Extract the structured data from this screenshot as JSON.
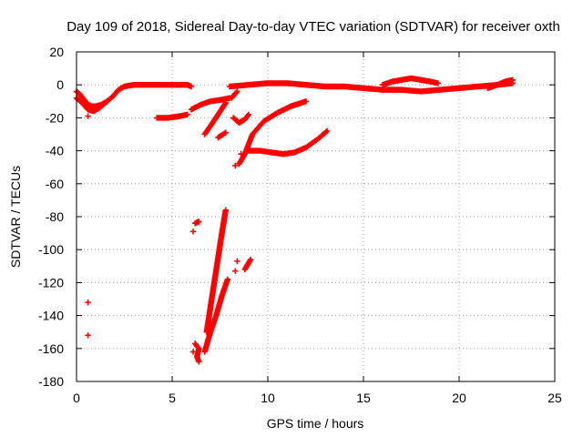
{
  "chart_data": {
    "type": "scatter",
    "title": "Day 109 of 2018, Sidereal Day-to-day VTEC variation (SDTVAR) for receiver oxth",
    "xlabel": "GPS time / hours",
    "ylabel": "SDTVAR / TECUs",
    "xlim": [
      0,
      25
    ],
    "ylim": [
      -180,
      20
    ],
    "xticks": [
      0,
      5,
      10,
      15,
      20,
      25
    ],
    "yticks": [
      -180,
      -160,
      -140,
      -120,
      -100,
      -80,
      -60,
      -40,
      -20,
      0,
      20
    ],
    "grid": true,
    "legend": "none",
    "marker": "plus",
    "color": "#ff0000",
    "tracks": [
      {
        "points": [
          [
            0.0,
            -4
          ],
          [
            0.2,
            -6
          ],
          [
            0.4,
            -9
          ],
          [
            0.6,
            -12
          ],
          [
            0.8,
            -13
          ],
          [
            1.0,
            -13
          ],
          [
            1.3,
            -12
          ],
          [
            1.6,
            -10
          ],
          [
            1.9,
            -7
          ],
          [
            2.2,
            -3
          ],
          [
            2.5,
            -1
          ],
          [
            3.0,
            0
          ],
          [
            4.0,
            0
          ],
          [
            5.0,
            0
          ],
          [
            5.8,
            0
          ],
          [
            6.0,
            -1
          ]
        ]
      },
      {
        "points": [
          [
            0.0,
            -8
          ],
          [
            0.3,
            -11
          ],
          [
            0.6,
            -15
          ],
          [
            0.9,
            -16
          ],
          [
            1.2,
            -14
          ],
          [
            1.5,
            -11
          ]
        ]
      },
      {
        "points": [
          [
            4.2,
            -20
          ],
          [
            4.8,
            -20
          ],
          [
            5.4,
            -19
          ],
          [
            5.8,
            -18
          ]
        ]
      },
      {
        "points": [
          [
            6.0,
            -15
          ],
          [
            6.5,
            -12
          ],
          [
            7.0,
            -10
          ],
          [
            7.6,
            -9
          ],
          [
            8.0,
            -8
          ]
        ]
      },
      {
        "points": [
          [
            6.7,
            -30
          ],
          [
            7.0,
            -25
          ],
          [
            7.4,
            -18
          ],
          [
            7.8,
            -11
          ]
        ]
      },
      {
        "points": [
          [
            7.4,
            -32
          ],
          [
            7.8,
            -29
          ]
        ]
      },
      {
        "points": [
          [
            8.1,
            -8
          ],
          [
            8.4,
            -4
          ]
        ]
      },
      {
        "points": [
          [
            8.2,
            -20
          ],
          [
            8.5,
            -23
          ],
          [
            8.8,
            -21
          ],
          [
            9.0,
            -18
          ]
        ]
      },
      {
        "points": [
          [
            8.5,
            -48
          ],
          [
            8.8,
            -42
          ],
          [
            9.2,
            -30
          ],
          [
            9.8,
            -22
          ],
          [
            10.5,
            -17
          ],
          [
            11.2,
            -13
          ],
          [
            12.0,
            -10
          ]
        ]
      },
      {
        "points": [
          [
            9.0,
            -40
          ],
          [
            9.6,
            -40
          ],
          [
            10.2,
            -41
          ],
          [
            10.8,
            -42
          ],
          [
            11.4,
            -41
          ],
          [
            12.0,
            -38
          ],
          [
            12.6,
            -33
          ],
          [
            13.1,
            -28
          ]
        ]
      },
      {
        "points": [
          [
            8.0,
            -1
          ],
          [
            9.0,
            0
          ],
          [
            10.0,
            1
          ],
          [
            11.0,
            1
          ],
          [
            12.0,
            0
          ],
          [
            13.0,
            -1
          ],
          [
            14.0,
            -1
          ],
          [
            15.0,
            -2
          ],
          [
            16.0,
            -3
          ],
          [
            17.0,
            -3
          ],
          [
            18.0,
            -4
          ],
          [
            19.0,
            -3
          ],
          [
            20.0,
            -2
          ],
          [
            21.0,
            -1
          ],
          [
            22.0,
            0
          ],
          [
            22.8,
            1
          ]
        ]
      },
      {
        "points": [
          [
            16.0,
            0
          ],
          [
            16.5,
            2
          ],
          [
            17.0,
            3
          ],
          [
            17.5,
            4
          ],
          [
            18.0,
            3
          ],
          [
            18.5,
            2
          ],
          [
            18.9,
            1
          ]
        ]
      },
      {
        "points": [
          [
            21.5,
            -2
          ],
          [
            22.0,
            0
          ],
          [
            22.4,
            2
          ],
          [
            22.8,
            3
          ]
        ]
      },
      {
        "points": [
          [
            6.2,
            -84
          ],
          [
            6.4,
            -83
          ]
        ]
      },
      {
        "points": [
          [
            6.2,
            -157
          ],
          [
            6.4,
            -160
          ],
          [
            6.3,
            -165
          ],
          [
            6.4,
            -168
          ]
        ]
      },
      {
        "points": [
          [
            6.8,
            -150
          ],
          [
            7.0,
            -135
          ],
          [
            7.2,
            -120
          ],
          [
            7.4,
            -105
          ],
          [
            7.6,
            -90
          ],
          [
            7.8,
            -76
          ]
        ]
      },
      {
        "points": [
          [
            6.7,
            -162
          ],
          [
            7.0,
            -150
          ],
          [
            7.3,
            -140
          ],
          [
            7.6,
            -128
          ],
          [
            7.9,
            -118
          ]
        ]
      },
      {
        "points": [
          [
            8.8,
            -112
          ],
          [
            9.1,
            -106
          ]
        ]
      }
    ],
    "isolated_points": [
      [
        0.6,
        -132
      ],
      [
        0.6,
        -152
      ],
      [
        0.6,
        -19
      ],
      [
        6.1,
        -89
      ],
      [
        6.1,
        -162
      ],
      [
        8.3,
        -113
      ],
      [
        8.4,
        -107
      ],
      [
        8.6,
        -42
      ],
      [
        8.3,
        -49
      ]
    ]
  }
}
